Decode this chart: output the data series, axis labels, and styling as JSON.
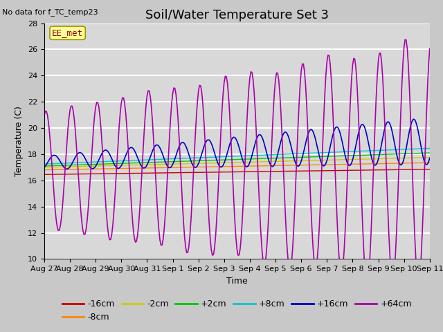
{
  "title": "Soil/Water Temperature Set 3",
  "xlabel": "Time",
  "ylabel": "Temperature (C)",
  "ylim": [
    10,
    28
  ],
  "yticks": [
    10,
    12,
    14,
    16,
    18,
    20,
    22,
    24,
    26,
    28
  ],
  "background_color": "#d8d8d8",
  "no_data_label": "No data for f_TC_temp23",
  "station_label": "EE_met",
  "x_labels": [
    "Aug 27",
    "Aug 28",
    "Aug 29",
    "Aug 30",
    "Aug 31",
    "Sep 1",
    "Sep 2",
    "Sep 3",
    "Sep 4",
    "Sep 5",
    "Sep 6",
    "Sep 7",
    "Sep 8",
    "Sep 9",
    "Sep 10",
    "Sep 11"
  ],
  "series_colors": {
    "-16cm": "#cc0000",
    "-8cm": "#ff8800",
    "-2cm": "#cccc00",
    "+2cm": "#00cc00",
    "+8cm": "#00cccc",
    "+16cm": "#0000cc",
    "+64cm": "#aa00aa"
  },
  "title_fontsize": 13,
  "axis_fontsize": 9,
  "tick_fontsize": 8,
  "legend_fontsize": 9
}
